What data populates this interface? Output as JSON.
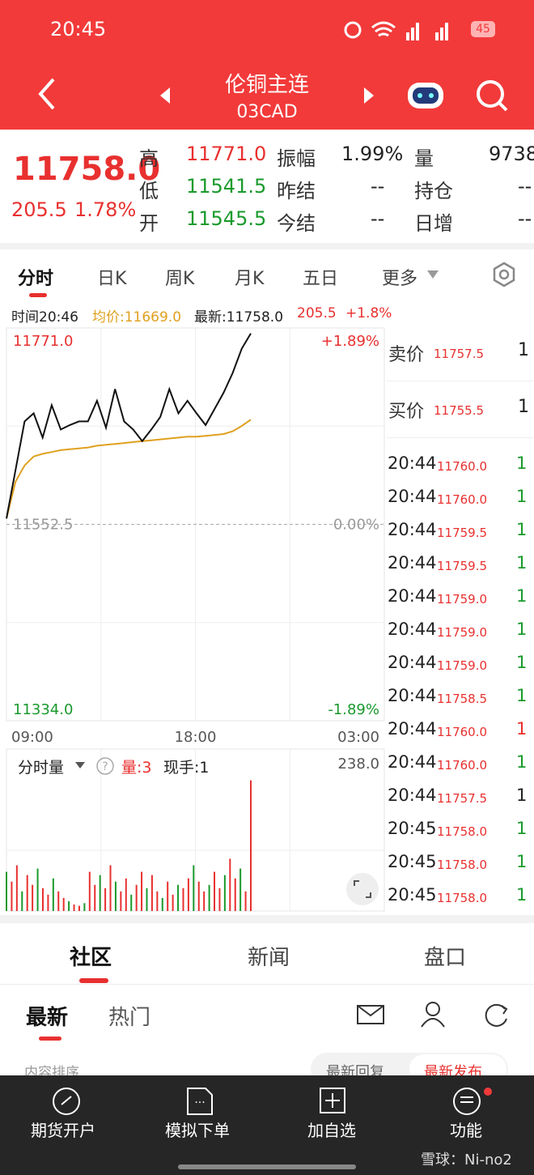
{
  "status": {
    "time": "20:45",
    "battery": "45"
  },
  "header": {
    "title": "伦铜主连",
    "code": "03CAD"
  },
  "quote": {
    "price": "11758.0",
    "change": "205.5",
    "pct": "1.78%",
    "columns": [
      [
        {
          "label": "高",
          "value": "11771.0",
          "color": "#e8302f"
        },
        {
          "label": "低",
          "value": "11541.5",
          "color": "#1a9a2c"
        },
        {
          "label": "开",
          "value": "11545.5",
          "color": "#1a9a2c"
        }
      ],
      [
        {
          "label": "振幅",
          "value": "1.99%",
          "color": "#222222"
        },
        {
          "label": "昨结",
          "value": "--",
          "color": "#222222"
        },
        {
          "label": "今结",
          "value": "--",
          "color": "#222222"
        }
      ],
      [
        {
          "label": "量",
          "value": "9738",
          "color": "#222222"
        },
        {
          "label": "持仓",
          "value": "--",
          "color": "#222222"
        },
        {
          "label": "日增",
          "value": "--",
          "color": "#222222"
        }
      ]
    ]
  },
  "tabs": [
    "分时",
    "日K",
    "周K",
    "月K",
    "五日",
    "更多"
  ],
  "info": {
    "time": "时间20:46",
    "avg": "均价:11669.0",
    "latest": "最新:11758.0",
    "change": "205.5",
    "pct": "+1.8%"
  },
  "chart_data": {
    "type": "line",
    "ylim": [
      11334,
      11771
    ],
    "yticks": [
      {
        "value": 11771,
        "label": "11771.0"
      },
      {
        "value": 11552.5,
        "label": "11552.5"
      },
      {
        "value": 11334,
        "label": "11334.0"
      }
    ],
    "y2lim": [
      -1.89,
      1.89
    ],
    "y2ticks": [
      {
        "value": 1.89,
        "label": "+1.89%"
      },
      {
        "value": 0,
        "label": "0.00%"
      },
      {
        "value": -1.89,
        "label": "-1.89%"
      }
    ],
    "xticks": [
      "09:00",
      "18:00",
      "03:00"
    ],
    "series": [
      {
        "name": "最新",
        "color": "#111111",
        "values": [
          11559,
          11613,
          11667,
          11676,
          11649,
          11685,
          11658,
          11663,
          11667,
          11667,
          11690,
          11660,
          11703,
          11667,
          11658,
          11645,
          11658,
          11672,
          11703,
          11676,
          11690,
          11676,
          11663,
          11681,
          11699,
          11721,
          11748,
          11765
        ]
      },
      {
        "name": "均价",
        "color": "#e0a020",
        "values": [
          11559,
          11600,
          11618,
          11628,
          11631,
          11633,
          11635,
          11636,
          11637,
          11638,
          11640,
          11641,
          11642,
          11643,
          11644,
          11645,
          11646,
          11647,
          11648,
          11649,
          11650,
          11650,
          11651,
          11652,
          11653,
          11656,
          11662,
          11669
        ]
      }
    ]
  },
  "volume": {
    "title": "分时量",
    "vol": "量:3",
    "hand": "现手:1",
    "ylim": [
      0,
      238
    ],
    "yticks": [
      {
        "value": 238,
        "label": "238.0"
      }
    ],
    "color": "#e8302f",
    "values": [
      60,
      45,
      70,
      30,
      55,
      40,
      65,
      35,
      25,
      50,
      30,
      20,
      15,
      10,
      8,
      12,
      60,
      40,
      55,
      35,
      70,
      45,
      30,
      50,
      25,
      40,
      60,
      35,
      55,
      30,
      20,
      45,
      25,
      40,
      35,
      50,
      70,
      45,
      30,
      40,
      60,
      35,
      55,
      80,
      50,
      65,
      30,
      200
    ]
  },
  "book": {
    "ask": {
      "label": "卖价",
      "price": "11757.5",
      "qty": "1"
    },
    "bid": {
      "label": "买价",
      "price": "11755.5",
      "qty": "1"
    },
    "trades": [
      {
        "time": "20:44",
        "price": "11760.0",
        "qty": "1",
        "color": "#1a9a2c"
      },
      {
        "time": "20:44",
        "price": "11760.0",
        "qty": "1",
        "color": "#1a9a2c"
      },
      {
        "time": "20:44",
        "price": "11759.5",
        "qty": "1",
        "color": "#1a9a2c"
      },
      {
        "time": "20:44",
        "price": "11759.5",
        "qty": "1",
        "color": "#1a9a2c"
      },
      {
        "time": "20:44",
        "price": "11759.0",
        "qty": "1",
        "color": "#1a9a2c"
      },
      {
        "time": "20:44",
        "price": "11759.0",
        "qty": "1",
        "color": "#1a9a2c"
      },
      {
        "time": "20:44",
        "price": "11759.0",
        "qty": "1",
        "color": "#1a9a2c"
      },
      {
        "time": "20:44",
        "price": "11758.5",
        "qty": "1",
        "color": "#1a9a2c"
      },
      {
        "time": "20:44",
        "price": "11760.0",
        "qty": "1",
        "color": "#e8302f"
      },
      {
        "time": "20:44",
        "price": "11760.0",
        "qty": "1",
        "color": "#1a9a2c"
      },
      {
        "time": "20:44",
        "price": "11757.5",
        "qty": "1",
        "color": "#222222"
      },
      {
        "time": "20:45",
        "price": "11758.0",
        "qty": "1",
        "color": "#1a9a2c"
      },
      {
        "time": "20:45",
        "price": "11758.0",
        "qty": "1",
        "color": "#1a9a2c"
      },
      {
        "time": "20:45",
        "price": "11758.0",
        "qty": "1",
        "color": "#1a9a2c"
      }
    ]
  },
  "section_tabs": [
    "社区",
    "新闻",
    "盘口"
  ],
  "sub_tabs": [
    "最新",
    "热门"
  ],
  "sort": {
    "label": "内容排序",
    "options": [
      "最新回复",
      "最新发布"
    ]
  },
  "nav": [
    "期货开户",
    "模拟下单",
    "加自选",
    "功能"
  ],
  "watermark": "雪球：Ni-no2"
}
